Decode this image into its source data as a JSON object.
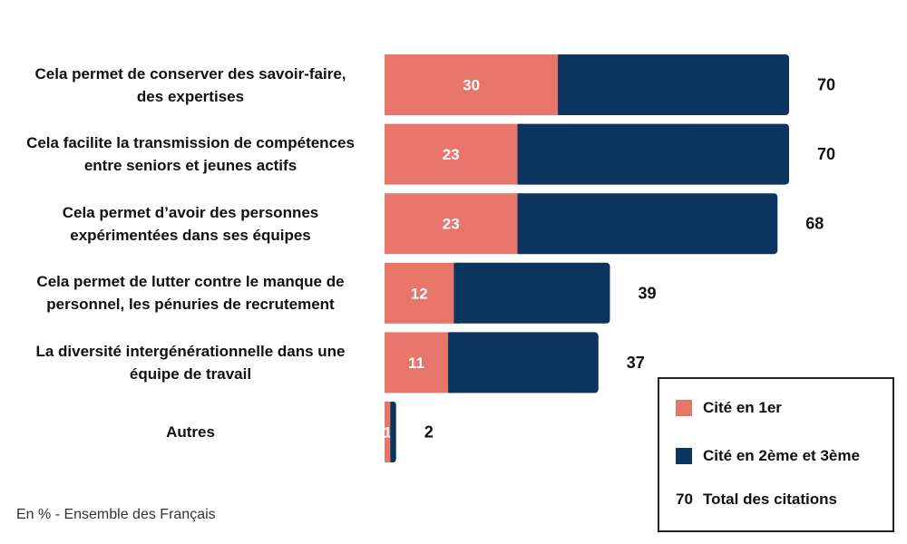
{
  "chart_data": {
    "type": "bar",
    "orientation": "horizontal",
    "stacked": true,
    "categories": [
      [
        "Cela permet de conserver des savoir-faire,",
        "des expertises"
      ],
      [
        "Cela facilite la transmission de compétences",
        "entre seniors et jeunes actifs"
      ],
      [
        "Cela permet d’avoir des personnes",
        "expérimentées dans ses équipes"
      ],
      [
        "Cela permet de lutter contre le manque de",
        "personnel, les pénuries de recrutement"
      ],
      [
        "La diversité intergénérationnelle dans une",
        "équipe de travail"
      ],
      [
        "Autres"
      ]
    ],
    "series": [
      {
        "name": "Cité en 1er",
        "color": "#E8756A",
        "values": [
          30,
          23,
          23,
          12,
          11,
          1
        ]
      },
      {
        "name": "Cité en 2ème et 3ème",
        "color": "#0B355E",
        "values": [
          40,
          47,
          45,
          27,
          26,
          1
        ]
      }
    ],
    "totals": [
      70,
      70,
      68,
      39,
      37,
      2
    ],
    "xlim": [
      0,
      70
    ],
    "grid": false,
    "legend_position": "bottom-right"
  },
  "legend": {
    "first_label": "Cité en 1er",
    "second_label": "Cité en 2ème et 3ème",
    "total_number": "70",
    "total_label": "Total des citations"
  },
  "footnote": "En % - Ensemble des Français"
}
